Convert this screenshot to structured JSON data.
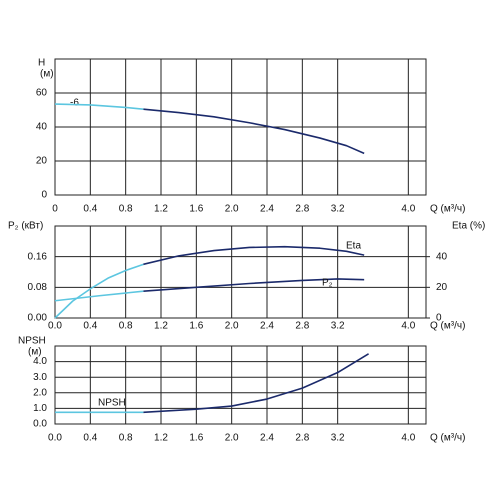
{
  "chart_data": [
    {
      "type": "line",
      "y_label": [
        "H",
        "(м)"
      ],
      "x_label": "Q (м³/ч)",
      "xlim": [
        0,
        4.2
      ],
      "xticks": [
        0,
        0.4,
        0.8,
        1.2,
        1.6,
        {
          "value": 2,
          "label": "2.0"
        },
        2.4,
        2.8,
        3.2,
        {
          "value": 4,
          "label": "4.0"
        }
      ],
      "ylim": [
        0,
        80
      ],
      "yticks": [
        0,
        20,
        40,
        60
      ],
      "grid": true,
      "series": [
        {
          "name": "-6",
          "color": "#1b2a6b",
          "x": [
            1.0,
            1.4,
            1.8,
            2.2,
            2.6,
            3.0,
            3.3,
            3.5
          ],
          "values": [
            50.5,
            48.5,
            46,
            42.5,
            38.5,
            33.5,
            29,
            24.5
          ]
        },
        {
          "color": "#5cc6e0",
          "x": [
            0,
            0.4,
            0.8,
            1.0
          ],
          "values": [
            53.5,
            53,
            51.5,
            50.5
          ]
        }
      ]
    },
    {
      "type": "line",
      "y_label": "P₂ (кВт)",
      "y2_label": "Eta (%)",
      "x_label": "Q (м³/ч)",
      "xlim": [
        0,
        4.2
      ],
      "xticks": [
        {
          "value": 0,
          "label": "0.0"
        },
        0.4,
        0.8,
        1.2,
        1.6,
        {
          "value": 2,
          "label": "2.0"
        },
        2.4,
        2.8,
        3.2,
        {
          "value": 4,
          "label": "4.0"
        }
      ],
      "ylim": [
        0,
        0.24
      ],
      "yticks": [
        {
          "value": 0,
          "label": "0.00"
        },
        0.08,
        0.16
      ],
      "y2lim": [
        0,
        60
      ],
      "y2ticks": [
        0,
        20,
        40
      ],
      "grid": true,
      "series": [
        {
          "name": "Eta",
          "axis": "y2",
          "color": "#1b2a6b",
          "x": [
            1.0,
            1.4,
            1.8,
            2.2,
            2.6,
            3.0,
            3.3,
            3.5
          ],
          "values": [
            35,
            40.5,
            44,
            46,
            46.5,
            45.5,
            43.5,
            41
          ]
        },
        {
          "axis": "y2",
          "color": "#5cc6e0",
          "x": [
            0,
            0.2,
            0.4,
            0.6,
            0.8,
            1.0
          ],
          "values": [
            0,
            11,
            19,
            26,
            31,
            35
          ]
        },
        {
          "name": "P₂",
          "color": "#1b2a6b",
          "x": [
            1.0,
            1.6,
            2.2,
            2.8,
            3.2,
            3.5
          ],
          "values": [
            0.07,
            0.08,
            0.09,
            0.098,
            0.102,
            0.1
          ]
        },
        {
          "color": "#5cc6e0",
          "x": [
            0,
            0.5,
            1.0
          ],
          "values": [
            0.045,
            0.058,
            0.07
          ]
        }
      ]
    },
    {
      "type": "line",
      "y_label": [
        "NPSH",
        "(м)"
      ],
      "x_label": "Q (м³/ч)",
      "xlim": [
        0,
        4.2
      ],
      "xticks": [
        {
          "value": 0,
          "label": "0.0"
        },
        0.4,
        0.8,
        1.2,
        1.6,
        {
          "value": 2,
          "label": "2.0"
        },
        2.4,
        2.8,
        3.2,
        {
          "value": 4,
          "label": "4.0"
        }
      ],
      "ylim": [
        0,
        5
      ],
      "yticks": [
        {
          "value": 0,
          "label": "0.0"
        },
        {
          "value": 1,
          "label": "1.0"
        },
        {
          "value": 2,
          "label": "2.0"
        },
        {
          "value": 3,
          "label": "3.0"
        },
        {
          "value": 4,
          "label": "4.0"
        }
      ],
      "grid": true,
      "series": [
        {
          "name": "NPSH",
          "color": "#1b2a6b",
          "x": [
            1.0,
            1.6,
            2.0,
            2.4,
            2.8,
            3.2,
            3.55
          ],
          "values": [
            0.75,
            0.95,
            1.15,
            1.6,
            2.3,
            3.3,
            4.5
          ]
        },
        {
          "color": "#5cc6e0",
          "x": [
            0,
            1.0
          ],
          "values": [
            0.75,
            0.75
          ]
        }
      ]
    }
  ]
}
